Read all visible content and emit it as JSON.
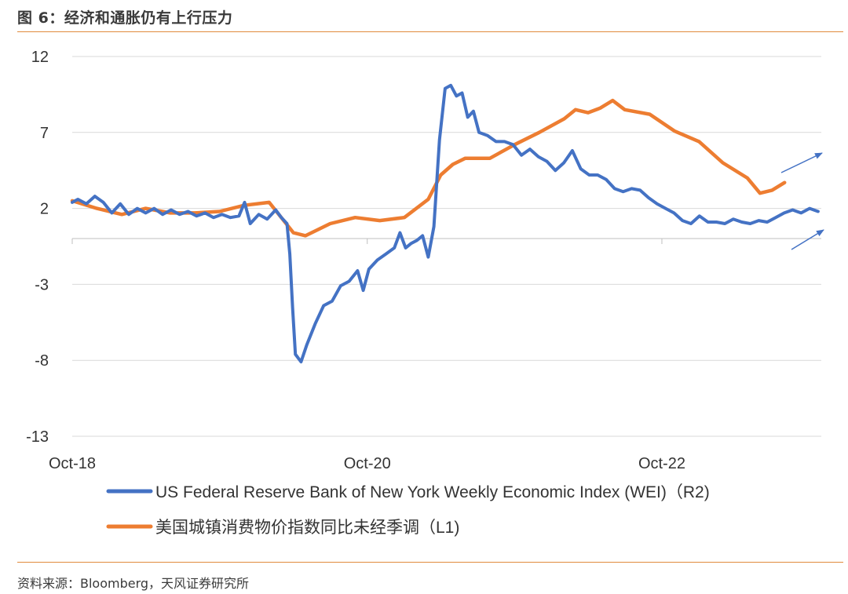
{
  "figure": {
    "title": "图 6：经济和通胀仍有上行压力",
    "source": "资料来源：Bloomberg，天风证券研究所"
  },
  "colors": {
    "wei": "#4472c4",
    "cpi": "#ed7d31",
    "grid": "#d9d9d9",
    "rule": "#e08a3c",
    "arrow": "#4472c4"
  },
  "chart_data": {
    "type": "line",
    "x_ticks": [
      "Oct-18",
      "Oct-20",
      "Oct-22"
    ],
    "x_range": [
      "2018-10-01",
      "2023-10-31"
    ],
    "y_ticks": [
      "12",
      "7",
      "2",
      "-3",
      "-8",
      "-13"
    ],
    "ylim": [
      -13,
      12
    ],
    "grid": "horizontal",
    "legend_position": "bottom",
    "annotations": "two upward arrows near the right end of both series",
    "series": [
      {
        "name": "US Federal Reserve Bank of New York Weekly Economic Index (WEI)（R2)",
        "color": "#4472c4",
        "points": [
          [
            "2018-10-01",
            2.4
          ],
          [
            "2018-10-15",
            2.6
          ],
          [
            "2018-11-05",
            2.3
          ],
          [
            "2018-11-26",
            2.8
          ],
          [
            "2018-12-17",
            2.4
          ],
          [
            "2019-01-07",
            1.7
          ],
          [
            "2019-01-28",
            2.3
          ],
          [
            "2019-02-18",
            1.6
          ],
          [
            "2019-03-11",
            2.0
          ],
          [
            "2019-04-01",
            1.7
          ],
          [
            "2019-04-22",
            2.0
          ],
          [
            "2019-05-13",
            1.6
          ],
          [
            "2019-06-03",
            1.9
          ],
          [
            "2019-06-24",
            1.6
          ],
          [
            "2019-07-15",
            1.8
          ],
          [
            "2019-08-05",
            1.5
          ],
          [
            "2019-08-26",
            1.7
          ],
          [
            "2019-09-16",
            1.4
          ],
          [
            "2019-10-07",
            1.6
          ],
          [
            "2019-10-28",
            1.4
          ],
          [
            "2019-11-18",
            1.5
          ],
          [
            "2019-12-02",
            2.4
          ],
          [
            "2019-12-16",
            1.0
          ],
          [
            "2020-01-06",
            1.6
          ],
          [
            "2020-01-27",
            1.3
          ],
          [
            "2020-02-17",
            1.9
          ],
          [
            "2020-03-02",
            1.4
          ],
          [
            "2020-03-16",
            1.0
          ],
          [
            "2020-03-23",
            -1.0
          ],
          [
            "2020-03-30",
            -4.5
          ],
          [
            "2020-04-06",
            -7.6
          ],
          [
            "2020-04-20",
            -8.1
          ],
          [
            "2020-05-04",
            -7.0
          ],
          [
            "2020-05-25",
            -5.6
          ],
          [
            "2020-06-15",
            -4.4
          ],
          [
            "2020-07-06",
            -4.1
          ],
          [
            "2020-07-27",
            -3.1
          ],
          [
            "2020-08-17",
            -2.8
          ],
          [
            "2020-09-07",
            -2.1
          ],
          [
            "2020-09-21",
            -3.4
          ],
          [
            "2020-10-05",
            -2.0
          ],
          [
            "2020-10-26",
            -1.4
          ],
          [
            "2020-11-16",
            -1.0
          ],
          [
            "2020-12-07",
            -0.6
          ],
          [
            "2020-12-21",
            0.4
          ],
          [
            "2021-01-04",
            -0.6
          ],
          [
            "2021-01-18",
            -0.3
          ],
          [
            "2021-02-01",
            -0.1
          ],
          [
            "2021-02-15",
            0.2
          ],
          [
            "2021-03-01",
            -1.2
          ],
          [
            "2021-03-15",
            0.8
          ],
          [
            "2021-03-29",
            6.5
          ],
          [
            "2021-04-12",
            9.9
          ],
          [
            "2021-04-26",
            10.1
          ],
          [
            "2021-05-10",
            9.4
          ],
          [
            "2021-05-24",
            9.6
          ],
          [
            "2021-06-07",
            8.0
          ],
          [
            "2021-06-21",
            8.4
          ],
          [
            "2021-07-05",
            7.0
          ],
          [
            "2021-07-26",
            6.8
          ],
          [
            "2021-08-16",
            6.4
          ],
          [
            "2021-09-06",
            6.4
          ],
          [
            "2021-09-27",
            6.2
          ],
          [
            "2021-10-18",
            5.5
          ],
          [
            "2021-11-08",
            5.9
          ],
          [
            "2021-11-29",
            5.4
          ],
          [
            "2021-12-20",
            5.1
          ],
          [
            "2022-01-10",
            4.5
          ],
          [
            "2022-01-31",
            5.0
          ],
          [
            "2022-02-21",
            5.8
          ],
          [
            "2022-03-14",
            4.6
          ],
          [
            "2022-04-04",
            4.2
          ],
          [
            "2022-04-25",
            4.2
          ],
          [
            "2022-05-16",
            3.9
          ],
          [
            "2022-06-06",
            3.3
          ],
          [
            "2022-06-27",
            3.1
          ],
          [
            "2022-07-18",
            3.3
          ],
          [
            "2022-08-08",
            3.2
          ],
          [
            "2022-08-29",
            2.7
          ],
          [
            "2022-09-19",
            2.3
          ],
          [
            "2022-10-10",
            2.0
          ],
          [
            "2022-10-31",
            1.7
          ],
          [
            "2022-11-21",
            1.2
          ],
          [
            "2022-12-12",
            1.0
          ],
          [
            "2023-01-02",
            1.5
          ],
          [
            "2023-01-23",
            1.1
          ],
          [
            "2023-02-13",
            1.1
          ],
          [
            "2023-03-06",
            1.0
          ],
          [
            "2023-03-27",
            1.3
          ],
          [
            "2023-04-17",
            1.1
          ],
          [
            "2023-05-08",
            1.0
          ],
          [
            "2023-05-29",
            1.2
          ],
          [
            "2023-06-19",
            1.1
          ],
          [
            "2023-07-10",
            1.4
          ],
          [
            "2023-07-31",
            1.7
          ],
          [
            "2023-08-21",
            1.9
          ],
          [
            "2023-09-11",
            1.7
          ],
          [
            "2023-10-02",
            2.0
          ],
          [
            "2023-10-23",
            1.8
          ]
        ]
      },
      {
        "name": "美国城镇消费物价指数同比未经季调（L1)",
        "color": "#ed7d31",
        "points": [
          [
            "2018-10-01",
            2.5
          ],
          [
            "2018-12-01",
            2.0
          ],
          [
            "2019-02-01",
            1.6
          ],
          [
            "2019-04-01",
            2.0
          ],
          [
            "2019-06-01",
            1.7
          ],
          [
            "2019-08-01",
            1.7
          ],
          [
            "2019-10-01",
            1.8
          ],
          [
            "2019-12-01",
            2.2
          ],
          [
            "2020-02-01",
            2.4
          ],
          [
            "2020-04-01",
            0.4
          ],
          [
            "2020-05-01",
            0.2
          ],
          [
            "2020-07-01",
            1.0
          ],
          [
            "2020-09-01",
            1.4
          ],
          [
            "2020-11-01",
            1.2
          ],
          [
            "2021-01-01",
            1.4
          ],
          [
            "2021-03-01",
            2.6
          ],
          [
            "2021-04-01",
            4.2
          ],
          [
            "2021-05-01",
            4.9
          ],
          [
            "2021-06-01",
            5.3
          ],
          [
            "2021-08-01",
            5.3
          ],
          [
            "2021-10-01",
            6.2
          ],
          [
            "2021-12-01",
            7.0
          ],
          [
            "2022-02-01",
            7.9
          ],
          [
            "2022-03-01",
            8.5
          ],
          [
            "2022-04-01",
            8.3
          ],
          [
            "2022-05-01",
            8.6
          ],
          [
            "2022-06-01",
            9.1
          ],
          [
            "2022-07-01",
            8.5
          ],
          [
            "2022-09-01",
            8.2
          ],
          [
            "2022-11-01",
            7.1
          ],
          [
            "2023-01-01",
            6.4
          ],
          [
            "2023-03-01",
            5.0
          ],
          [
            "2023-05-01",
            4.0
          ],
          [
            "2023-06-01",
            3.0
          ],
          [
            "2023-07-01",
            3.2
          ],
          [
            "2023-08-01",
            3.7
          ]
        ]
      }
    ]
  },
  "legend": [
    {
      "label": "US Federal Reserve Bank of New York Weekly Economic Index (WEI)（R2)",
      "color": "#4472c4"
    },
    {
      "label": "美国城镇消费物价指数同比未经季调（L1)",
      "color": "#ed7d31"
    }
  ]
}
